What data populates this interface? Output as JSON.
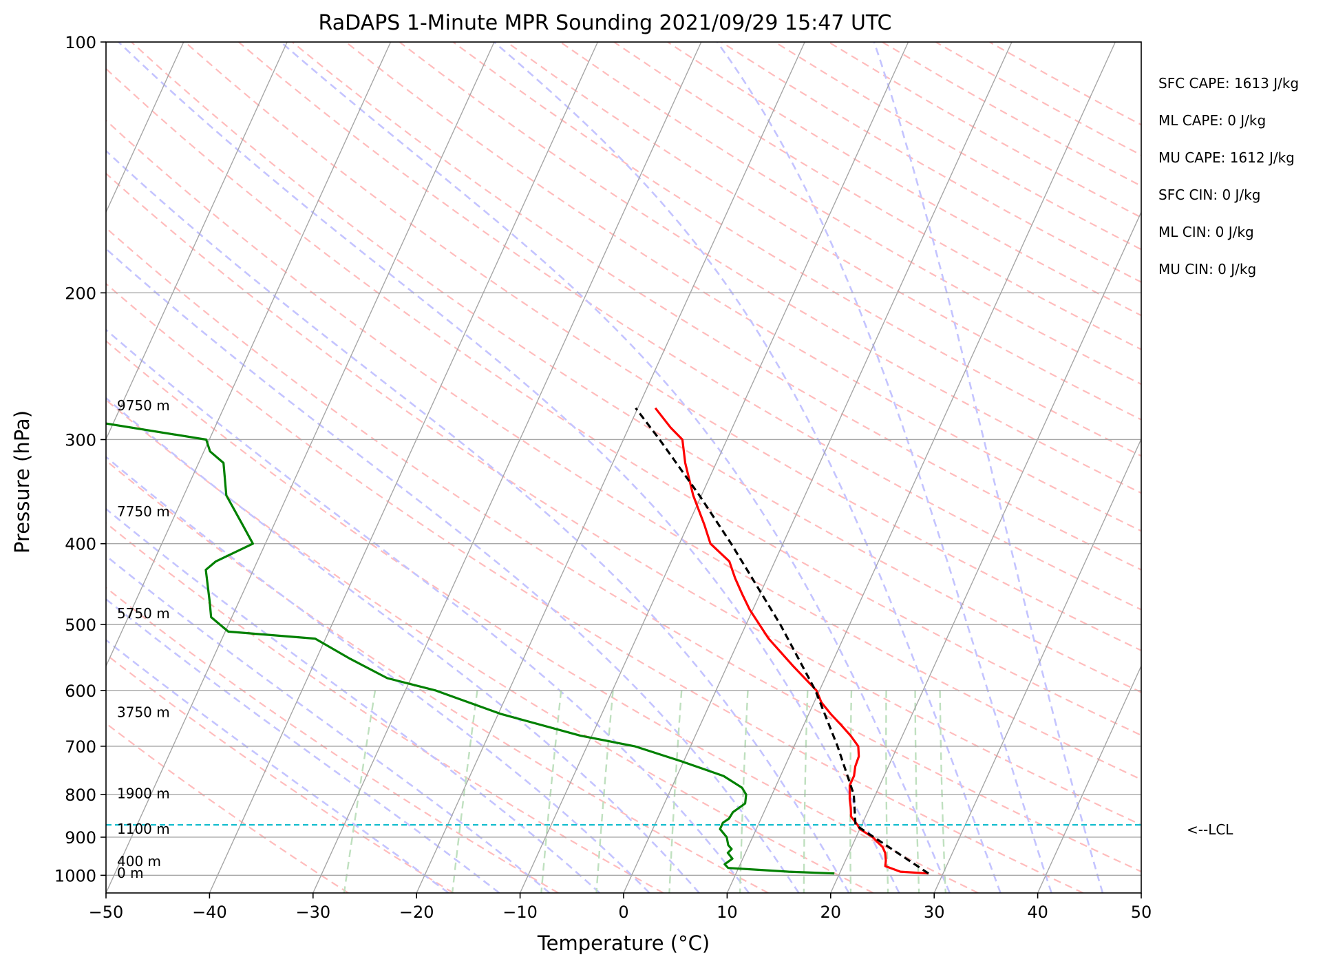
{
  "chart_data": {
    "type": "line",
    "title": "RaDAPS 1-Minute MPR Sounding 2021/09/29 15:47 UTC",
    "xlabel": "Temperature (°C)",
    "ylabel": "Pressure (hPa)",
    "xlim": [
      -50,
      50
    ],
    "ylim": [
      1050,
      100
    ],
    "yscale": "log",
    "skew": "skew-T log-p",
    "grid": true,
    "x_ticks": [
      "−50",
      "−40",
      "−30",
      "−20",
      "−10",
      "0",
      "10",
      "20",
      "30",
      "40",
      "50"
    ],
    "y_ticks": [
      "100",
      "200",
      "300",
      "400",
      "500",
      "600",
      "700",
      "800",
      "900",
      "1000"
    ],
    "series": [
      {
        "name": "",
        "color": "#ff0000",
        "style": "solid",
        "pressure": [
          995,
          990,
          975,
          960,
          940,
          925,
          900,
          880,
          870,
          850,
          830,
          810,
          780,
          760,
          740,
          720,
          700,
          680,
          660,
          640,
          620,
          600,
          560,
          520,
          480,
          460,
          440,
          420,
          400,
          380,
          350,
          320,
          300,
          290,
          275
        ],
        "temperature": [
          28.6,
          25.8,
          24.1,
          23.9,
          23.5,
          23.0,
          21.6,
          20.0,
          19.6,
          18.6,
          18.2,
          17.7,
          17.1,
          17.1,
          16.8,
          16.7,
          16.2,
          15.0,
          13.6,
          12.1,
          10.7,
          9.7,
          6.3,
          2.8,
          -0.3,
          -1.7,
          -3.1,
          -4.4,
          -7.0,
          -8.4,
          -10.8,
          -13.0,
          -14.3,
          -16.0,
          -18.3
        ]
      },
      {
        "name": "",
        "color": "#008000",
        "style": "solid",
        "pressure": [
          995,
          990,
          985,
          980,
          970,
          955,
          940,
          930,
          920,
          900,
          880,
          865,
          855,
          840,
          820,
          800,
          785,
          760,
          730,
          700,
          680,
          640,
          600,
          580,
          550,
          520,
          510,
          490,
          470,
          430,
          420,
          400,
          380,
          350,
          320,
          310,
          300,
          280,
          265
        ],
        "temperature": [
          19.5,
          15.0,
          12.0,
          9.0,
          8.5,
          9.0,
          8.3,
          8.5,
          8.0,
          7.5,
          6.5,
          6.5,
          6.9,
          7.0,
          7.8,
          7.5,
          6.8,
          4.5,
          -0.2,
          -5.4,
          -11.1,
          -19.8,
          -27.1,
          -32.3,
          -36.7,
          -41.0,
          -49.7,
          -52.0,
          -52.8,
          -54.6,
          -54.0,
          -51.2,
          -53.0,
          -55.9,
          -57.6,
          -59.4,
          -60.3,
          -76.4,
          -82.0
        ]
      },
      {
        "name": "",
        "color": "#000000",
        "style": "dashed",
        "pressure": [
          995,
          870,
          800,
          700,
          600,
          500,
          400,
          350,
          300,
          275
        ],
        "temperature": [
          28.6,
          19.4,
          17.9,
          14.2,
          9.6,
          3.3,
          -5.0,
          -10.2,
          -16.5,
          -20.2
        ]
      }
    ],
    "lcl_pressure": 870,
    "lcl_label": "<--LCL",
    "height_labels": [
      {
        "text": "9750 m",
        "pressure": 273
      },
      {
        "text": "7750 m",
        "pressure": 366
      },
      {
        "text": "5750 m",
        "pressure": 485
      },
      {
        "text": "3750 m",
        "pressure": 637
      },
      {
        "text": "1900 m",
        "pressure": 798
      },
      {
        "text": "1100 m",
        "pressure": 880
      },
      {
        "text": "400 m",
        "pressure": 962
      },
      {
        "text": "0 m",
        "pressure": 994
      }
    ],
    "stats": [
      "SFC CAPE: 1613 J/kg",
      "ML CAPE: 0 J/kg",
      "MU CAPE: 1612 J/kg",
      "SFC CIN: 0 J/kg",
      "ML CIN: 0 J/kg",
      "MU CIN: 0 J/kg"
    ],
    "colors": {
      "isotherm": "#a6a6a6",
      "dry_adiabat": "#ffbcbc",
      "moist_adiabat": "#c4c4ff",
      "mixing_ratio": "#bfe0bf",
      "lcl_line": "#17becf"
    }
  }
}
